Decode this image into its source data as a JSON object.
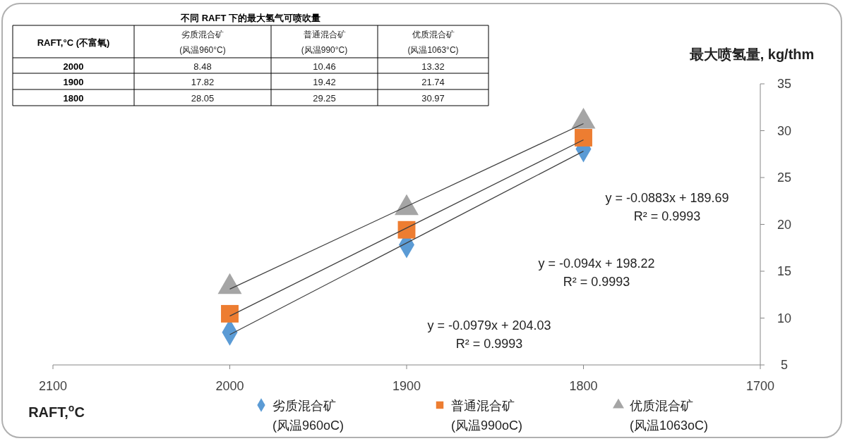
{
  "chart_data": [
    {
      "type": "other",
      "title": "不同 RAFT 下的最大氢气可喷吹量",
      "xlabel": "RAFT,°C (不富氧)",
      "categories": [
        "2000",
        "1900",
        "1800"
      ],
      "data_labels": true,
      "series": [
        {
          "name": "劣质混合矿\n(风温960°C)",
          "values": [
            8.48,
            17.82,
            28.05
          ]
        },
        {
          "name": "普通混合矿\n(风温990°C)",
          "values": [
            10.46,
            19.42,
            29.25
          ]
        },
        {
          "name": "优质混合矿\n(风温1063°C)",
          "values": [
            13.32,
            21.74,
            30.97
          ]
        }
      ]
    },
    {
      "type": "scatter",
      "xlabel": "RAFT,$^{o}$C",
      "ylabel": "最大喷氢量, kg/thm",
      "x": [
        2000,
        1900,
        1800
      ],
      "series": [
        {
          "name": "劣质混合矿\n(风温960oC)",
          "color": "#5b9bd5",
          "marker": "diamond",
          "values": [
            8.48,
            17.82,
            28.05
          ]
        },
        {
          "name": "普通混合矿\n(风温990oC)",
          "color": "#ed7d31",
          "marker": "square",
          "values": [
            10.46,
            19.42,
            29.25
          ]
        },
        {
          "name": "优质混合矿\n(风温1063oC)",
          "color": "#a5a5a5",
          "marker": "triangle",
          "values": [
            13.32,
            21.74,
            30.97
          ]
        },
        {
          "type": "line",
          "color": "#404040",
          "values": [
            8.23,
            18.02,
            27.81
          ]
        },
        {
          "type": "line",
          "color": "#404040",
          "values": [
            10.22,
            19.62,
            29.02
          ]
        },
        {
          "type": "line",
          "color": "#404040",
          "values": [
            13.09,
            21.92,
            30.75
          ]
        }
      ],
      "annotations": [
        "y = -0.0979x + 204.03\nR² = 0.9993",
        "y = -0.094x + 198.22\nR² = 0.9993",
        "y = -0.0883x + 189.69\nR² = 0.9993"
      ],
      "xlim": [
        2100,
        1700
      ],
      "xticks": [
        2100,
        2000,
        1900,
        1800,
        1700
      ],
      "ylim": [
        5,
        35
      ],
      "yticks": [
        5,
        10,
        15,
        20,
        25,
        30,
        35
      ],
      "grid": false,
      "legend": "bottom"
    }
  ]
}
